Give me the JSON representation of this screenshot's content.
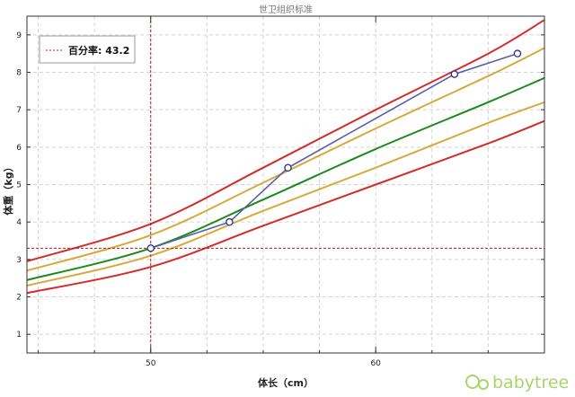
{
  "chart_data": {
    "type": "line",
    "title": "世卫组织标准",
    "xlabel": "体长（cm）",
    "ylabel": "体重（kg）",
    "xlim": [
      44.5,
      67.5
    ],
    "ylim": [
      0.5,
      9.5
    ],
    "xticks": [
      50,
      60
    ],
    "yticks": [
      1,
      2,
      3,
      4,
      5,
      6,
      7,
      8,
      9
    ],
    "grid": true,
    "legend": {
      "position": "top-left",
      "label": "百分率: 43.2"
    },
    "reference_lines": {
      "x": 50,
      "y": 3.3
    },
    "series": [
      {
        "color": "#d42a2a",
        "x": [
          44.5,
          50,
          55,
          60,
          65,
          67.5
        ],
        "values": [
          2.1,
          2.8,
          3.9,
          5.0,
          6.1,
          6.7
        ]
      },
      {
        "color": "#d8a93a",
        "x": [
          44.5,
          50,
          55,
          60,
          65,
          67.5
        ],
        "values": [
          2.3,
          3.1,
          4.3,
          5.45,
          6.65,
          7.2
        ]
      },
      {
        "color": "#1a8a1a",
        "x": [
          44.5,
          50,
          55,
          60,
          65,
          67.5
        ],
        "values": [
          2.45,
          3.3,
          4.6,
          5.95,
          7.2,
          7.85
        ]
      },
      {
        "color": "#d8a93a",
        "x": [
          44.5,
          50,
          55,
          60,
          65,
          67.5
        ],
        "values": [
          2.7,
          3.65,
          5.05,
          6.5,
          7.9,
          8.65
        ]
      },
      {
        "color": "#d42a2a",
        "x": [
          44.5,
          50,
          55,
          60,
          65,
          67.5
        ],
        "values": [
          2.95,
          3.95,
          5.45,
          7.0,
          8.5,
          9.4
        ]
      },
      {
        "color": "#5b5ea6",
        "markers": true,
        "x": [
          50,
          53.5,
          56.1,
          63.5,
          66.3
        ],
        "values": [
          3.3,
          4.0,
          5.45,
          7.95,
          8.5
        ]
      }
    ]
  },
  "watermark": {
    "text": "babytree"
  }
}
